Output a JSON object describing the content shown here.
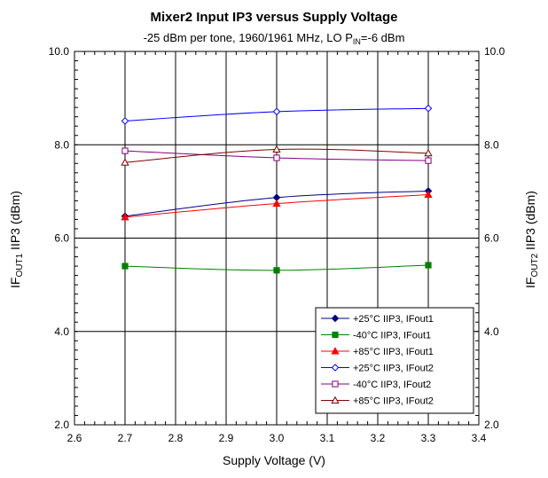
{
  "chart_data": {
    "type": "line",
    "title": "Mixer2 Input IP3 versus Supply Voltage",
    "subtitle": {
      "main": "-25 dBm per tone, 1960/1961 MHz, LO P",
      "sub": "IN",
      "tail": "=-6 dBm"
    },
    "xlabel": "Supply Voltage (V)",
    "ylabel_left": {
      "pre": "IF",
      "sub": "OUT1",
      "post": " IIP3 (dBm)"
    },
    "ylabel_right": {
      "pre": "IF",
      "sub": "OUT2",
      "post": " IIP3 (dBm)"
    },
    "xlim": [
      2.6,
      3.4
    ],
    "ylim": [
      2.0,
      10.0
    ],
    "x_ticks": [
      "2.6",
      "2.7",
      "2.8",
      "2.9",
      "3.0",
      "3.1",
      "3.2",
      "3.3",
      "3.4"
    ],
    "y_ticks": [
      "2.0",
      "4.0",
      "6.0",
      "8.0",
      "10.0"
    ],
    "grid": true,
    "legend_position": "bottom-right",
    "x": [
      2.7,
      3.0,
      3.3
    ],
    "series": [
      {
        "name": "+25°C IIP3, IFout1",
        "values": [
          6.47,
          6.87,
          7.01
        ],
        "color": "#000080",
        "marker": "diamond",
        "filled": true
      },
      {
        "name": "-40°C IIP3, IFout1",
        "values": [
          5.4,
          5.31,
          5.42
        ],
        "color": "#008000",
        "marker": "square",
        "filled": true
      },
      {
        "name": "+85°C IIP3, IFout1",
        "values": [
          6.45,
          6.74,
          6.93
        ],
        "color": "#ff0000",
        "marker": "triangle",
        "filled": true
      },
      {
        "name": "+25°C IIP3, IFout2",
        "values": [
          8.51,
          8.71,
          8.78
        ],
        "color": "#0000ff",
        "marker": "diamond",
        "filled": false
      },
      {
        "name": "-40°C IIP3, IFout2",
        "values": [
          7.87,
          7.72,
          7.66
        ],
        "color": "#800080",
        "marker": "square",
        "filled": false
      },
      {
        "name": "+85°C IIP3, IFout2",
        "values": [
          7.62,
          7.9,
          7.82
        ],
        "color": "#800000",
        "marker": "triangle",
        "filled": false
      }
    ]
  }
}
